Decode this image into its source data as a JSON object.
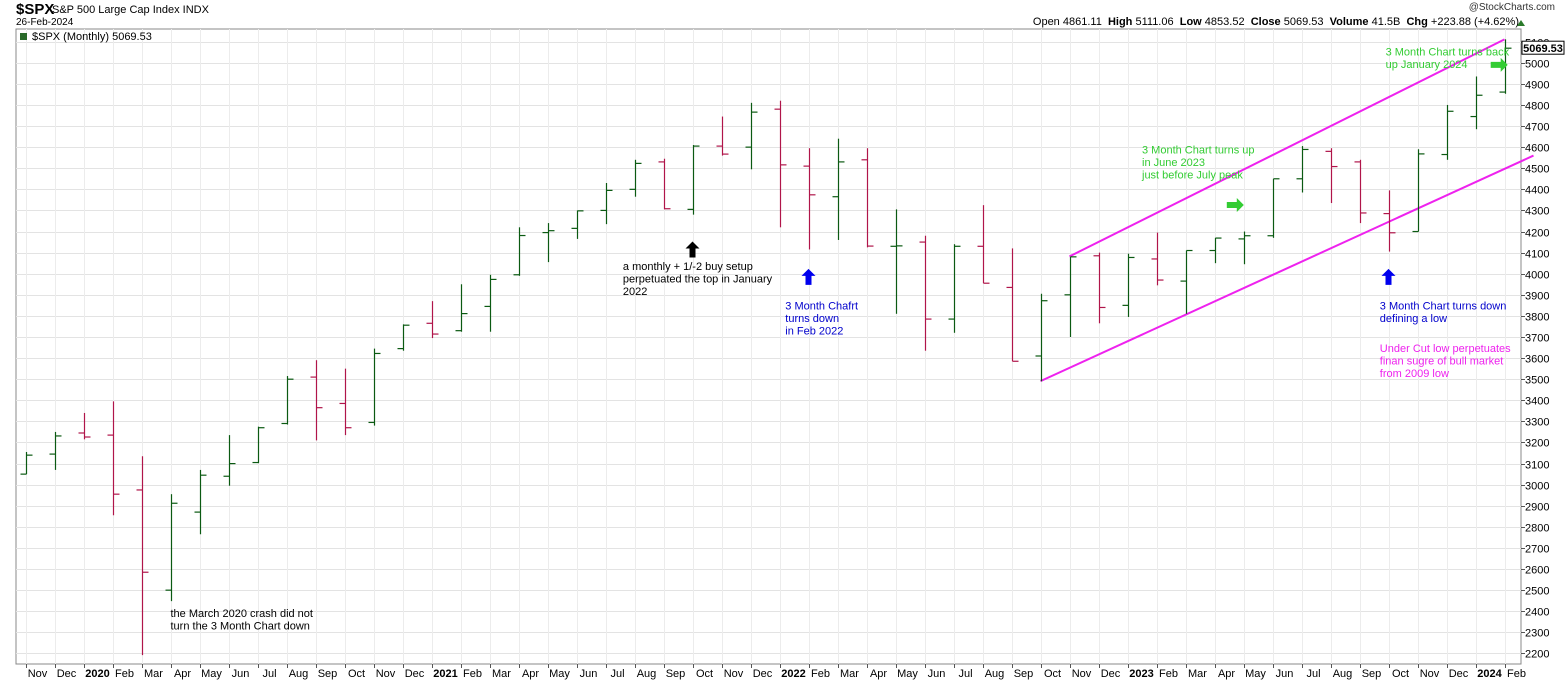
{
  "header": {
    "symbol": "$SPX",
    "name": "S&P 500 Large Cap Index INDX",
    "date": "26-Feb-2024",
    "brand": "@StockCharts.com",
    "open_label": "Open",
    "open": "4861.11",
    "high_label": "High",
    "high": "5111.06",
    "low_label": "Low",
    "low": "4853.52",
    "close_label": "Close",
    "close": "5069.53",
    "volume_label": "Volume",
    "volume": "41.5B",
    "chg_label": "Chg",
    "chg": "+223.88 (+4.62%)"
  },
  "chart_data": {
    "type": "ohlc",
    "legend": "$SPX (Monthly) 5069.53",
    "last_value_tag": "5069.53",
    "ylim": [
      2150,
      5160
    ],
    "y_ticks": [
      2200,
      2300,
      2400,
      2500,
      2600,
      2700,
      2800,
      2900,
      3000,
      3100,
      3200,
      3300,
      3400,
      3500,
      3600,
      3700,
      3800,
      3900,
      4000,
      4100,
      4200,
      4300,
      4400,
      4500,
      4600,
      4700,
      4800,
      4900,
      5000,
      5100
    ],
    "x_labels": [
      "Nov",
      "Dec",
      "2020",
      "Feb",
      "Mar",
      "Apr",
      "May",
      "Jun",
      "Jul",
      "Aug",
      "Sep",
      "Oct",
      "Nov",
      "Dec",
      "2021",
      "Feb",
      "Mar",
      "Apr",
      "May",
      "Jun",
      "Jul",
      "Aug",
      "Sep",
      "Oct",
      "Nov",
      "Dec",
      "2022",
      "Feb",
      "Mar",
      "Apr",
      "May",
      "Jun",
      "Jul",
      "Aug",
      "Sep",
      "Oct",
      "Nov",
      "Dec",
      "2023",
      "Feb",
      "Mar",
      "Apr",
      "May",
      "Jun",
      "Jul",
      "Aug",
      "Sep",
      "Oct",
      "Nov",
      "Dec",
      "2024",
      "Feb"
    ],
    "bars": [
      {
        "o": 3050,
        "h": 3155,
        "l": 3050,
        "c": 3140,
        "up": true
      },
      {
        "o": 3145,
        "h": 3250,
        "l": 3070,
        "c": 3231,
        "up": true
      },
      {
        "o": 3245,
        "h": 3340,
        "l": 3215,
        "c": 3226,
        "up": false
      },
      {
        "o": 3235,
        "h": 3395,
        "l": 2855,
        "c": 2955,
        "up": false
      },
      {
        "o": 2975,
        "h": 3135,
        "l": 2192,
        "c": 2585,
        "up": false
      },
      {
        "o": 2500,
        "h": 2955,
        "l": 2448,
        "c": 2912,
        "up": true
      },
      {
        "o": 2870,
        "h": 3070,
        "l": 2765,
        "c": 3045,
        "up": true
      },
      {
        "o": 3040,
        "h": 3235,
        "l": 2995,
        "c": 3100,
        "up": true
      },
      {
        "o": 3105,
        "h": 3275,
        "l": 3102,
        "c": 3270,
        "up": true
      },
      {
        "o": 3290,
        "h": 3515,
        "l": 3285,
        "c": 3500,
        "up": true
      },
      {
        "o": 3510,
        "h": 3590,
        "l": 3210,
        "c": 3365,
        "up": false
      },
      {
        "o": 3385,
        "h": 3550,
        "l": 3235,
        "c": 3270,
        "up": false
      },
      {
        "o": 3295,
        "h": 3645,
        "l": 3280,
        "c": 3622,
        "up": true
      },
      {
        "o": 3645,
        "h": 3760,
        "l": 3635,
        "c": 3756,
        "up": true
      },
      {
        "o": 3765,
        "h": 3870,
        "l": 3695,
        "c": 3714,
        "up": false
      },
      {
        "o": 3730,
        "h": 3950,
        "l": 3725,
        "c": 3811,
        "up": true
      },
      {
        "o": 3845,
        "h": 3995,
        "l": 3725,
        "c": 3973,
        "up": true
      },
      {
        "o": 3995,
        "h": 4220,
        "l": 3990,
        "c": 4181,
        "up": true
      },
      {
        "o": 4195,
        "h": 4240,
        "l": 4055,
        "c": 4204,
        "up": true
      },
      {
        "o": 4215,
        "h": 4300,
        "l": 4165,
        "c": 4298,
        "up": true
      },
      {
        "o": 4300,
        "h": 4430,
        "l": 4235,
        "c": 4395,
        "up": true
      },
      {
        "o": 4400,
        "h": 4540,
        "l": 4365,
        "c": 4523,
        "up": true
      },
      {
        "o": 4530,
        "h": 4545,
        "l": 4305,
        "c": 4308,
        "up": false
      },
      {
        "o": 4305,
        "h": 4610,
        "l": 4280,
        "c": 4605,
        "up": true
      },
      {
        "o": 4605,
        "h": 4745,
        "l": 4560,
        "c": 4567,
        "up": false
      },
      {
        "o": 4600,
        "h": 4810,
        "l": 4495,
        "c": 4766,
        "up": true
      },
      {
        "o": 4780,
        "h": 4820,
        "l": 4220,
        "c": 4516,
        "up": false
      },
      {
        "o": 4510,
        "h": 4595,
        "l": 4115,
        "c": 4374,
        "up": false
      },
      {
        "o": 4365,
        "h": 4640,
        "l": 4160,
        "c": 4530,
        "up": true
      },
      {
        "o": 4540,
        "h": 4595,
        "l": 4125,
        "c": 4131,
        "up": false
      },
      {
        "o": 4130,
        "h": 4305,
        "l": 3810,
        "c": 4132,
        "up": true
      },
      {
        "o": 4150,
        "h": 4180,
        "l": 3635,
        "c": 3785,
        "up": false
      },
      {
        "o": 3785,
        "h": 4140,
        "l": 3720,
        "c": 4130,
        "up": true
      },
      {
        "o": 4130,
        "h": 4325,
        "l": 3955,
        "c": 3955,
        "up": false
      },
      {
        "o": 3935,
        "h": 4120,
        "l": 3585,
        "c": 3585,
        "up": false
      },
      {
        "o": 3610,
        "h": 3905,
        "l": 3490,
        "c": 3872,
        "up": true
      },
      {
        "o": 3900,
        "h": 4080,
        "l": 3700,
        "c": 4080,
        "up": true
      },
      {
        "o": 4085,
        "h": 4100,
        "l": 3765,
        "c": 3840,
        "up": false
      },
      {
        "o": 3850,
        "h": 4095,
        "l": 3795,
        "c": 4077,
        "up": true
      },
      {
        "o": 4070,
        "h": 4195,
        "l": 3945,
        "c": 3970,
        "up": false
      },
      {
        "o": 3965,
        "h": 4110,
        "l": 3810,
        "c": 4110,
        "up": true
      },
      {
        "o": 4110,
        "h": 4170,
        "l": 4050,
        "c": 4169,
        "up": true
      },
      {
        "o": 4165,
        "h": 4200,
        "l": 4045,
        "c": 4180,
        "up": true
      },
      {
        "o": 4180,
        "h": 4450,
        "l": 4170,
        "c": 4450,
        "up": true
      },
      {
        "o": 4450,
        "h": 4605,
        "l": 4385,
        "c": 4589,
        "up": true
      },
      {
        "o": 4580,
        "h": 4595,
        "l": 4335,
        "c": 4508,
        "up": false
      },
      {
        "o": 4530,
        "h": 4540,
        "l": 4240,
        "c": 4288,
        "up": false
      },
      {
        "o": 4285,
        "h": 4395,
        "l": 4105,
        "c": 4194,
        "up": false
      },
      {
        "o": 4200,
        "h": 4590,
        "l": 4200,
        "c": 4568,
        "up": true
      },
      {
        "o": 4565,
        "h": 4800,
        "l": 4540,
        "c": 4770,
        "up": true
      },
      {
        "o": 4745,
        "h": 4935,
        "l": 4685,
        "c": 4846,
        "up": true
      },
      {
        "o": 4861,
        "h": 5111,
        "l": 4853,
        "c": 5069,
        "up": true
      }
    ],
    "channel": {
      "upper": [
        {
          "bar": 36,
          "y": 4082
        },
        {
          "bar": 51,
          "y": 5111
        }
      ],
      "lower": [
        {
          "bar": 35,
          "y": 3491
        },
        {
          "bar": 52,
          "y": 4560
        }
      ],
      "color": "#ee22ee"
    },
    "annotations": [
      {
        "lines": [
          "the March 2020 crash did not",
          "turn the 3 Month Chart down"
        ],
        "color": "#000000",
        "bar": 5,
        "y": 2373
      },
      {
        "lines": [
          "a monthly + 1/-2 buy setup",
          "perpetuated the top in January",
          "2022"
        ],
        "color": "#000000",
        "bar": 20.6,
        "y": 4018
      },
      {
        "lines": [
          "3 Month Chafrt",
          "turns down",
          "in Feb 2022"
        ],
        "color": "#0000cc",
        "bar": 26.2,
        "y": 3830
      },
      {
        "lines": [
          "3 Month Chart turns up",
          "in June 2023",
          "just before July peak"
        ],
        "color": "#33cc33",
        "bar": 38.5,
        "y": 4570
      },
      {
        "lines": [
          "3 Month Chart turns back",
          "up January 2024"
        ],
        "color": "#33cc33",
        "bar": 46.9,
        "y": 5035
      },
      {
        "lines": [
          "3 Month Chart turns down",
          "defining a low"
        ],
        "color": "#0000cc",
        "bar": 46.7,
        "y": 3830
      },
      {
        "lines": [
          "Under Cut low perpetuates",
          "finan sugre of bull market",
          "from 2009 low"
        ],
        "color": "#ee22ee",
        "bar": 46.7,
        "y": 3629
      }
    ],
    "markers": [
      {
        "bar": 23,
        "y": 4115,
        "dir": "up",
        "color": "#000000"
      },
      {
        "bar": 27,
        "y": 3985,
        "dir": "up",
        "color": "#0000ee"
      },
      {
        "bar": 41.7,
        "y": 4326,
        "dir": "right",
        "color": "#33cc33"
      },
      {
        "bar": 47,
        "y": 3985,
        "dir": "up",
        "color": "#0000ee"
      },
      {
        "bar": 50.8,
        "y": 4990,
        "dir": "right",
        "color": "#33cc33"
      }
    ]
  }
}
